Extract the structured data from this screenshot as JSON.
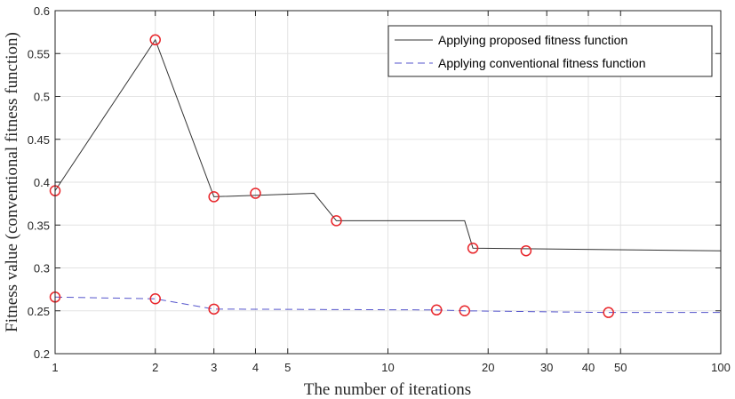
{
  "chart_data": {
    "type": "line",
    "xlabel": "The number of iterations",
    "ylabel": "Fitness value (conventional fitness function)",
    "xscale": "log",
    "xlim": [
      1,
      100
    ],
    "ylim": [
      0.2,
      0.6
    ],
    "grid": true,
    "legend_position": "top-right",
    "x_ticks": [
      1,
      2,
      3,
      4,
      5,
      10,
      20,
      30,
      40,
      50,
      100
    ],
    "x_tick_labels": [
      "1",
      "2",
      "3",
      "4",
      "5",
      "10",
      "20",
      "30",
      "40",
      "50",
      "100"
    ],
    "y_ticks": [
      0.2,
      0.25,
      0.3,
      0.35,
      0.4,
      0.45,
      0.5,
      0.55,
      0.6
    ],
    "y_tick_labels": [
      "0.2",
      "0.25",
      "0.3",
      "0.35",
      "0.4",
      "0.45",
      "0.5",
      "0.55",
      "0.6"
    ],
    "series": [
      {
        "name": "Applying proposed fitness function",
        "color": "#333333",
        "line_style": "solid",
        "x": [
          1,
          2,
          3,
          6,
          7,
          17,
          18,
          100
        ],
        "y": [
          0.39,
          0.566,
          0.383,
          0.387,
          0.355,
          0.355,
          0.323,
          0.32
        ],
        "marker_x": [
          1,
          2,
          3,
          4,
          7,
          18,
          26
        ],
        "marker_y": [
          0.39,
          0.566,
          0.383,
          0.387,
          0.355,
          0.323,
          0.32
        ]
      },
      {
        "name": "Applying conventional fitness function",
        "color": "#5555cc",
        "line_style": "dashed",
        "x": [
          1,
          2,
          3,
          14,
          17,
          46,
          100
        ],
        "y": [
          0.266,
          0.264,
          0.252,
          0.251,
          0.25,
          0.248,
          0.248
        ],
        "marker_x": [
          1,
          2,
          3,
          14,
          17,
          46
        ],
        "marker_y": [
          0.266,
          0.264,
          0.252,
          0.251,
          0.25,
          0.248
        ]
      }
    ],
    "marker": {
      "shape": "circle",
      "color": "#e8262b"
    }
  }
}
